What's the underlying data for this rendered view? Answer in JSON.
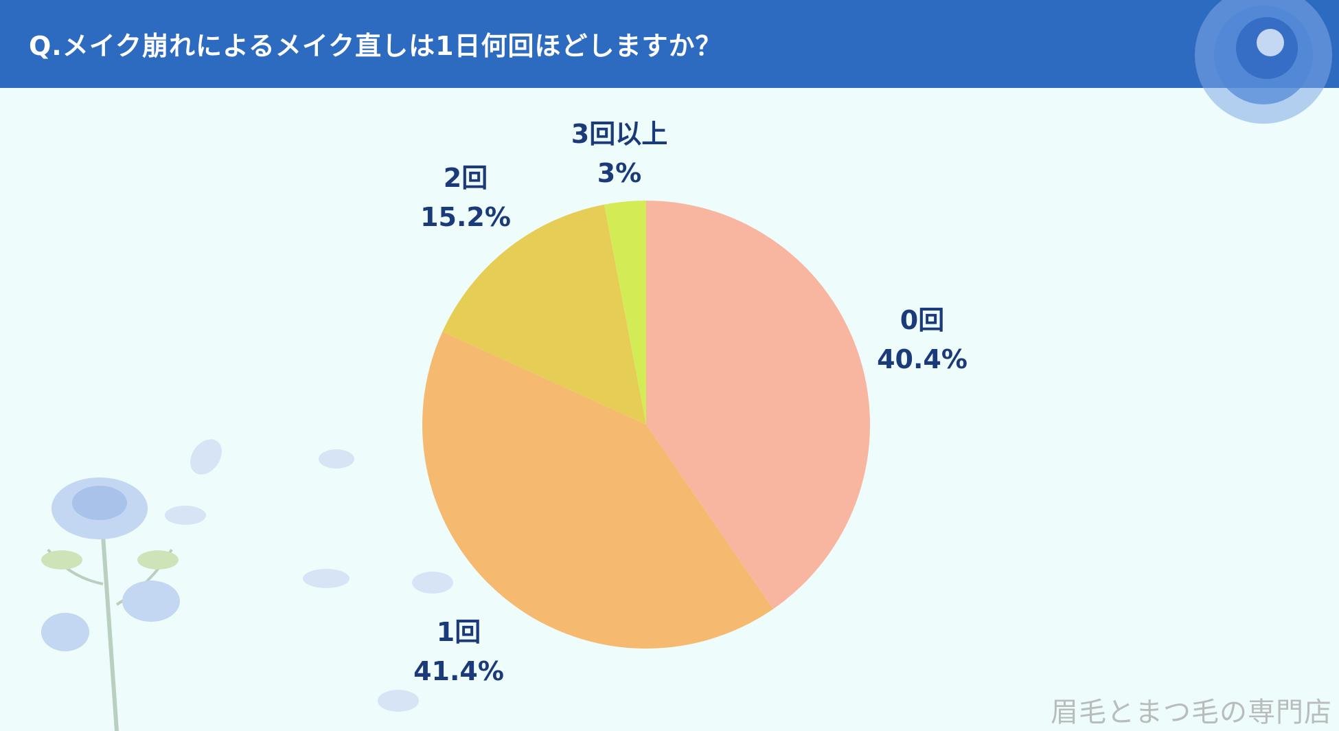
{
  "header": {
    "title": "Q.メイク崩れによるメイク直しは1日何回ほどしますか？"
  },
  "watermark": "眉毛とまつ毛の専門店",
  "chart_data": {
    "type": "pie",
    "title": "Q.メイク崩れによるメイク直しは1日何回ほどしますか？",
    "start": "top, clockwise",
    "slices": [
      {
        "label": "0回",
        "value": 40.4,
        "value_label": "40.4%",
        "color": "#f8b6a1"
      },
      {
        "label": "1回",
        "value": 41.4,
        "value_label": "41.4%",
        "color": "#f5b96f"
      },
      {
        "label": "2回",
        "value": 15.2,
        "value_label": "15.2%",
        "color": "#e6cd56"
      },
      {
        "label": "3回以上",
        "value": 3,
        "value_label": "3%",
        "color": "#d3ec55"
      }
    ]
  }
}
